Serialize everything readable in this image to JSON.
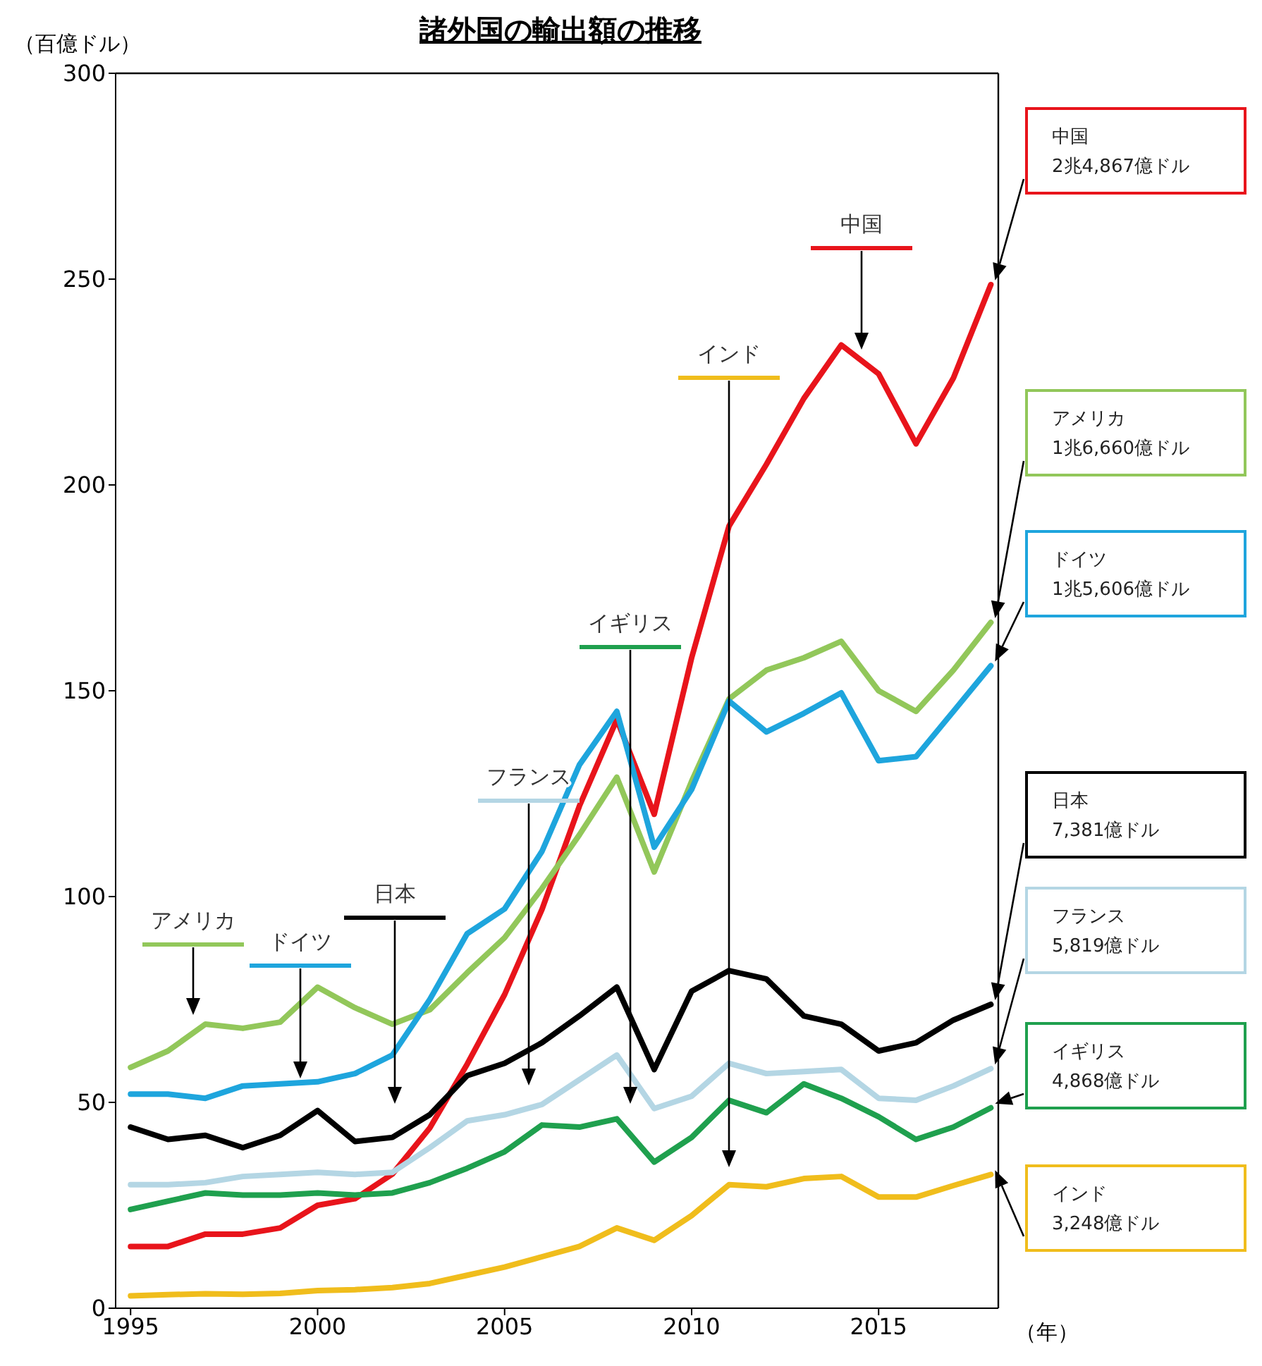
{
  "chart_data": {
    "type": "line",
    "title": "諸外国の輸出額の推移",
    "ylabel": "（百億ドル）",
    "xlabel": "（年）",
    "x": [
      1995,
      1996,
      1997,
      1998,
      1999,
      2000,
      2001,
      2002,
      2003,
      2004,
      2005,
      2006,
      2007,
      2008,
      2009,
      2010,
      2011,
      2012,
      2013,
      2014,
      2015,
      2016,
      2017,
      2018
    ],
    "xlim": [
      1994.6,
      2018.2
    ],
    "xticks": [
      1995,
      2000,
      2005,
      2010,
      2015
    ],
    "ylim": [
      0,
      300
    ],
    "yticks": [
      0,
      50,
      100,
      150,
      200,
      250,
      300
    ],
    "legend": "right",
    "series": [
      {
        "name": "中国",
        "color": "#e8141b",
        "values": [
          15,
          15,
          18,
          18,
          19.5,
          25,
          26.6,
          32.6,
          43.8,
          59.3,
          76.2,
          96.9,
          122,
          143,
          120,
          158,
          190,
          205,
          221,
          234,
          227,
          210,
          226,
          248.67
        ]
      },
      {
        "name": "アメリカ",
        "color": "#92c75a",
        "values": [
          58.5,
          62.5,
          69,
          68,
          69.5,
          78,
          73,
          69,
          72.5,
          81.5,
          90,
          102,
          115,
          129,
          106,
          128,
          148,
          155,
          158,
          162,
          150,
          145,
          155,
          166.6
        ]
      },
      {
        "name": "ドイツ",
        "color": "#1ea5dd",
        "values": [
          52,
          52,
          51,
          54,
          54.5,
          55,
          57,
          61.5,
          75,
          91,
          97,
          111,
          132,
          145,
          112,
          126,
          147.5,
          140,
          144.5,
          149.5,
          133,
          134,
          145,
          156.06
        ]
      },
      {
        "name": "日本",
        "color": "#000000",
        "values": [
          44,
          41,
          42,
          39,
          42,
          48,
          40.5,
          41.5,
          47,
          56.5,
          59.5,
          64.5,
          71,
          78,
          58,
          77,
          82,
          80,
          71,
          69,
          62.5,
          64.5,
          70,
          73.81
        ]
      },
      {
        "name": "フランス",
        "color": "#b4d6e4",
        "values": [
          30,
          30,
          30.5,
          32,
          32.5,
          33,
          32.5,
          33,
          39,
          45.5,
          47,
          49.5,
          55.5,
          61.5,
          48.5,
          51.5,
          59.5,
          57,
          57.5,
          58,
          51,
          50.5,
          54,
          58.19
        ]
      },
      {
        "name": "イギリス",
        "color": "#1fa04e",
        "values": [
          24,
          26,
          28,
          27.5,
          27.5,
          28,
          27.5,
          28,
          30.5,
          34,
          38,
          44.5,
          44,
          46,
          35.5,
          41.5,
          50.5,
          47.5,
          54.5,
          51,
          46.5,
          41,
          44,
          48.68
        ]
      },
      {
        "name": "インド",
        "color": "#f0bd1c",
        "values": [
          3,
          3.3,
          3.5,
          3.4,
          3.6,
          4.3,
          4.5,
          5,
          6,
          8,
          10,
          12.5,
          15,
          19.5,
          16.5,
          22.5,
          30,
          29.5,
          31.5,
          32,
          27,
          27,
          29.8,
          32.48
        ]
      }
    ],
    "annotations": [
      "アメリカ",
      "ドイツ",
      "日本",
      "フランス",
      "イギリス",
      "インド",
      "中国",
      "2兆4,867億ドル",
      "1兆6,660億ドル",
      "1兆5,606億ドル",
      "7,381億ドル",
      "5,819億ドル",
      "4,868億ドル",
      "3,248億ドル"
    ]
  }
}
